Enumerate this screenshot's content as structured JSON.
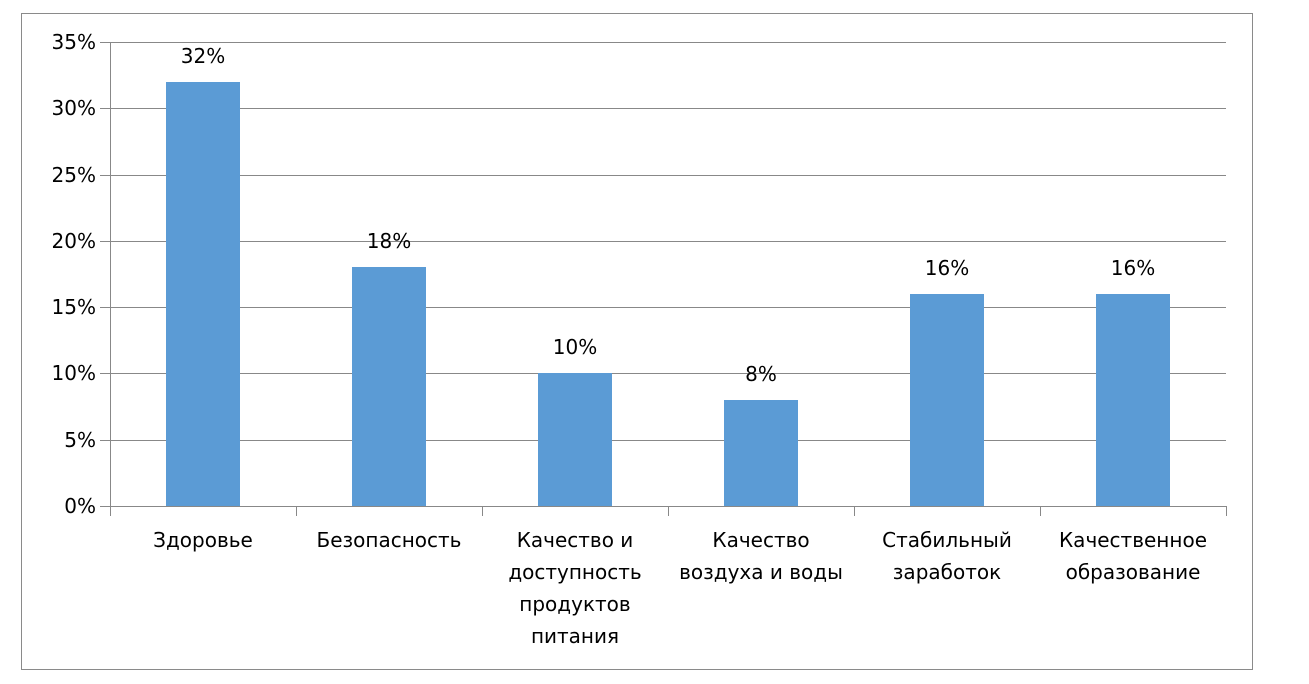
{
  "chart_data": {
    "type": "bar",
    "title": "",
    "xlabel": "",
    "ylabel": "",
    "ylim": [
      0,
      0.35
    ],
    "yticks": [
      "0%",
      "5%",
      "10%",
      "15%",
      "20%",
      "25%",
      "30%",
      "35%"
    ],
    "grid": true,
    "legend": null,
    "bar_color": "#5B9BD5",
    "categories": [
      "Здоровье",
      "Безопасность",
      "Качество и доступность продуктов питания",
      "Качество воздуха и воды",
      "Стабильный заработок",
      "Качественное образование"
    ],
    "values": [
      0.32,
      0.18,
      0.1,
      0.08,
      0.16,
      0.16
    ],
    "data_labels": [
      "32%",
      "18%",
      "10%",
      "8%",
      "16%",
      "16%"
    ]
  },
  "display": {
    "yticks": [
      "0%",
      "5%",
      "10%",
      "15%",
      "20%",
      "25%",
      "30%",
      "35%"
    ],
    "xlabels": [
      "Здоровье",
      "Безопасность",
      "Качество и\nдоступность\nпродуктов\nпитания",
      "Качество\nвоздуха и воды",
      "Стабильный\nзаработок",
      "Качественное\nобразование"
    ]
  }
}
